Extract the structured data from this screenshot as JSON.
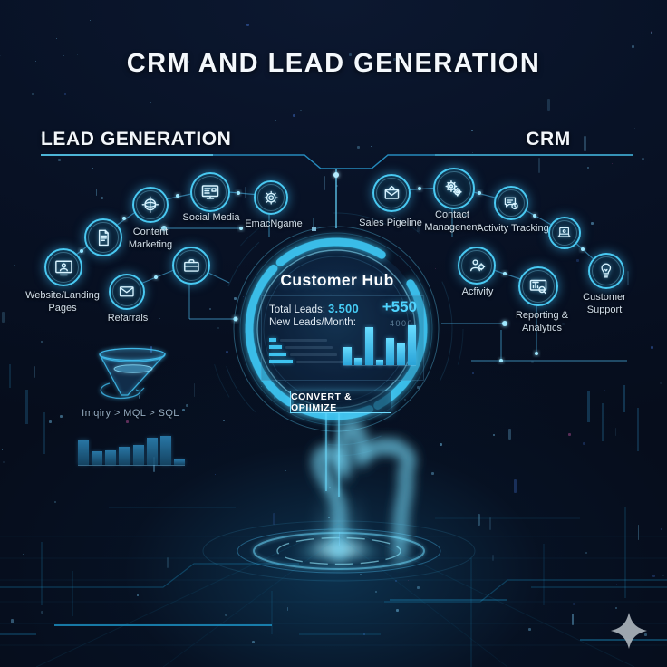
{
  "title": "CRM AND LEAD GENERATION",
  "sections": {
    "lead_generation_heading": "LEAD GENERATION",
    "crm_heading": "CRM"
  },
  "lead_nodes": [
    {
      "id": "website-landing-pages",
      "icon": "browser-user-icon",
      "label": "Website/Landing Pages"
    },
    {
      "id": "content-document",
      "icon": "document-icon",
      "label": ""
    },
    {
      "id": "content-marketing",
      "icon": "globe-target-icon",
      "label": "Content Marketing"
    },
    {
      "id": "social-media",
      "icon": "screen-icon",
      "label": "Social Media"
    },
    {
      "id": "email-marketing",
      "icon": "gear-badge-icon",
      "label": "EmacNgame"
    },
    {
      "id": "referrals",
      "icon": "envelope-icon",
      "label": "Refarrals"
    },
    {
      "id": "briefcase-node",
      "icon": "briefcase-icon",
      "label": ""
    }
  ],
  "crm_nodes": [
    {
      "id": "sales-pipeline",
      "icon": "case-check-icon",
      "label": "Sales Pigeline"
    },
    {
      "id": "contact-management",
      "icon": "gears-icon",
      "label": "Contact Managenent"
    },
    {
      "id": "activity-tracking",
      "icon": "chat-clock-icon",
      "label": "Activity Tracking"
    },
    {
      "id": "laptop-node",
      "icon": "laptop-icon",
      "label": ""
    },
    {
      "id": "customer-support",
      "icon": "bulb-icon",
      "label": "Customer Support"
    },
    {
      "id": "activity",
      "icon": "person-gear-icon",
      "label": "Acfivity"
    },
    {
      "id": "reporting-analytics",
      "icon": "dashboard-icon",
      "label": "Reporting & Analytics"
    }
  ],
  "hub": {
    "title": "Customer Hub",
    "total_leads_label": "Total Leads:",
    "total_leads_value": "3.500",
    "delta_value": "+550",
    "new_leads_label": "New Leads/Month:",
    "secondary_value": "4000",
    "button_label": "CONVERT & OPIIMIZE"
  },
  "funnel": {
    "caption": "Imqiry > MQL > SQL"
  },
  "chart_data": [
    {
      "type": "bar",
      "title": "Customer Hub monthly leads mini chart",
      "values": [
        45,
        18,
        95,
        14,
        68,
        55,
        100
      ],
      "ylim": [
        0,
        100
      ]
    },
    {
      "type": "bar",
      "title": "Customer Hub metric rows (horizontal)",
      "orientation": "horizontal",
      "values": [
        18,
        30,
        42,
        58
      ],
      "ylim": [
        0,
        100
      ]
    },
    {
      "type": "bar",
      "title": "Lead funnel volume mini chart",
      "values": [
        85,
        44,
        47,
        62,
        68,
        91,
        97,
        18
      ],
      "ylim": [
        0,
        100
      ]
    }
  ],
  "footer": {
    "logo": "sparkle-star-icon"
  },
  "colors": {
    "accent": "#45d0ff",
    "accent_dim": "#2b9fd6",
    "text": "#f2f6fa",
    "muted": "#93aabf",
    "background": "#081226"
  }
}
